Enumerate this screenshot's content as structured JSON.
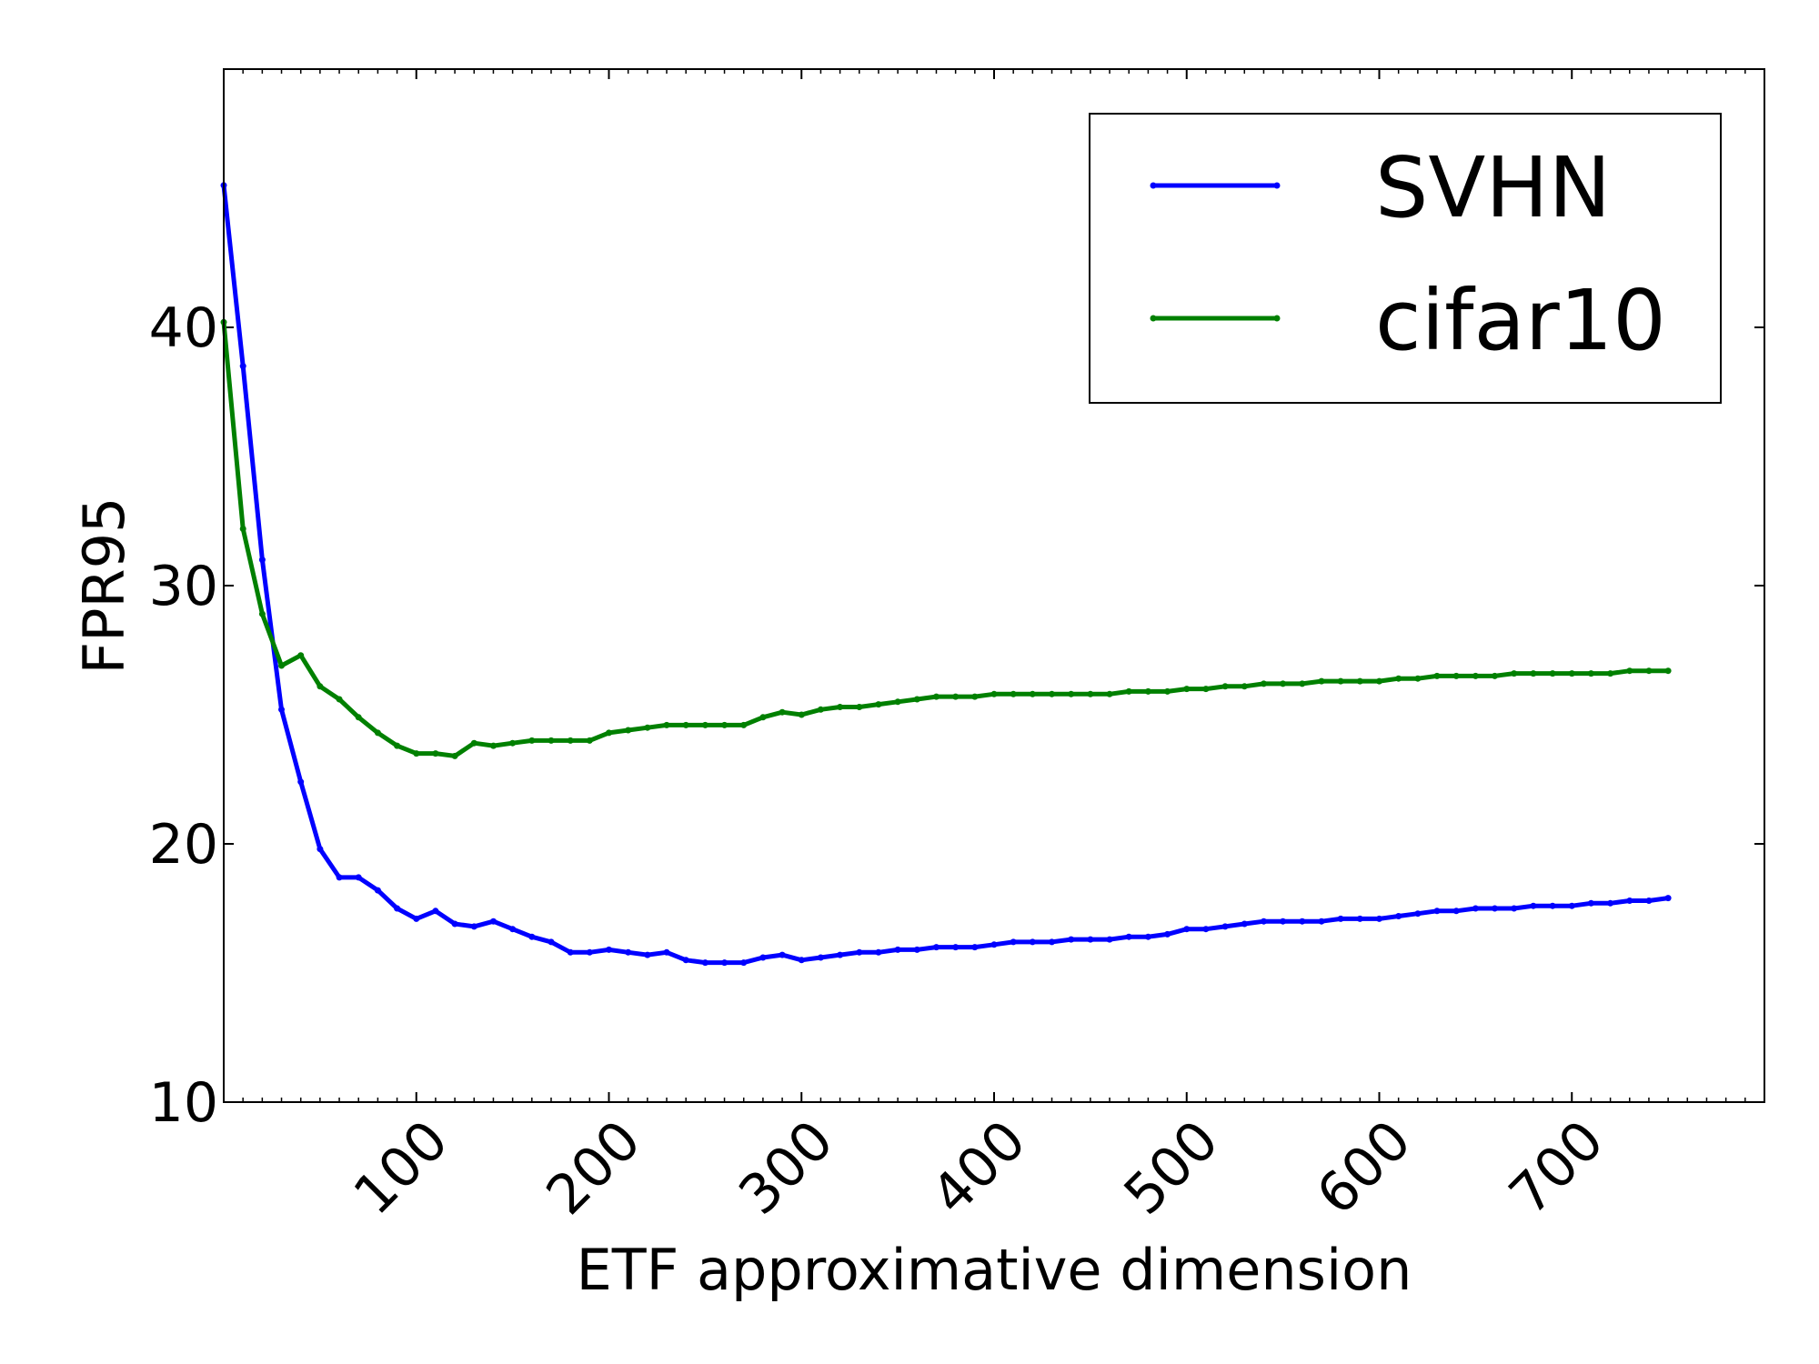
{
  "chart_data": {
    "type": "line",
    "title": "",
    "xlabel": "ETF approximative dimension",
    "ylabel": "FPR95",
    "xlim": [
      0,
      800
    ],
    "ylim": [
      10,
      50
    ],
    "xticks": [
      100,
      200,
      300,
      400,
      500,
      600,
      700
    ],
    "yticks": [
      10,
      20,
      30,
      40
    ],
    "grid": false,
    "legend": "top-right",
    "series": [
      {
        "name": "SVHN",
        "color": "#0000ff",
        "x": [
          0,
          10,
          20,
          30,
          40,
          50,
          60,
          70,
          80,
          90,
          100,
          110,
          120,
          130,
          140,
          150,
          160,
          170,
          180,
          190,
          200,
          210,
          220,
          230,
          240,
          250,
          260,
          270,
          280,
          290,
          300,
          310,
          320,
          330,
          340,
          350,
          360,
          370,
          380,
          390,
          400,
          410,
          420,
          430,
          440,
          450,
          460,
          470,
          480,
          490,
          500,
          510,
          520,
          530,
          540,
          550,
          560,
          570,
          580,
          590,
          600,
          610,
          620,
          630,
          640,
          650,
          660,
          670,
          680,
          690,
          700,
          710,
          720,
          730,
          740,
          750
        ],
        "y": [
          45.5,
          38.5,
          31.0,
          25.2,
          22.4,
          19.8,
          18.7,
          18.7,
          18.2,
          17.5,
          17.1,
          17.4,
          16.9,
          16.8,
          17.0,
          16.7,
          16.4,
          16.2,
          15.8,
          15.8,
          15.9,
          15.8,
          15.7,
          15.8,
          15.5,
          15.4,
          15.4,
          15.4,
          15.6,
          15.7,
          15.5,
          15.6,
          15.7,
          15.8,
          15.8,
          15.9,
          15.9,
          16.0,
          16.0,
          16.0,
          16.1,
          16.2,
          16.2,
          16.2,
          16.3,
          16.3,
          16.3,
          16.4,
          16.4,
          16.5,
          16.7,
          16.7,
          16.8,
          16.9,
          17.0,
          17.0,
          17.0,
          17.0,
          17.1,
          17.1,
          17.1,
          17.2,
          17.3,
          17.4,
          17.4,
          17.5,
          17.5,
          17.5,
          17.6,
          17.6,
          17.6,
          17.7,
          17.7,
          17.8,
          17.8,
          17.9
        ]
      },
      {
        "name": "cifar10",
        "color": "#008000",
        "x": [
          0,
          10,
          20,
          30,
          40,
          50,
          60,
          70,
          80,
          90,
          100,
          110,
          120,
          130,
          140,
          150,
          160,
          170,
          180,
          190,
          200,
          210,
          220,
          230,
          240,
          250,
          260,
          270,
          280,
          290,
          300,
          310,
          320,
          330,
          340,
          350,
          360,
          370,
          380,
          390,
          400,
          410,
          420,
          430,
          440,
          450,
          460,
          470,
          480,
          490,
          500,
          510,
          520,
          530,
          540,
          550,
          560,
          570,
          580,
          590,
          600,
          610,
          620,
          630,
          640,
          650,
          660,
          670,
          680,
          690,
          700,
          710,
          720,
          730,
          740,
          750
        ],
        "y": [
          40.2,
          32.2,
          28.9,
          26.9,
          27.3,
          26.1,
          25.6,
          24.9,
          24.3,
          23.8,
          23.5,
          23.5,
          23.4,
          23.9,
          23.8,
          23.9,
          24.0,
          24.0,
          24.0,
          24.0,
          24.3,
          24.4,
          24.5,
          24.6,
          24.6,
          24.6,
          24.6,
          24.6,
          24.9,
          25.1,
          25.0,
          25.2,
          25.3,
          25.3,
          25.4,
          25.5,
          25.6,
          25.7,
          25.7,
          25.7,
          25.8,
          25.8,
          25.8,
          25.8,
          25.8,
          25.8,
          25.8,
          25.9,
          25.9,
          25.9,
          26.0,
          26.0,
          26.1,
          26.1,
          26.2,
          26.2,
          26.2,
          26.3,
          26.3,
          26.3,
          26.3,
          26.4,
          26.4,
          26.5,
          26.5,
          26.5,
          26.5,
          26.6,
          26.6,
          26.6,
          26.6,
          26.6,
          26.6,
          26.7,
          26.7,
          26.7
        ]
      }
    ]
  }
}
